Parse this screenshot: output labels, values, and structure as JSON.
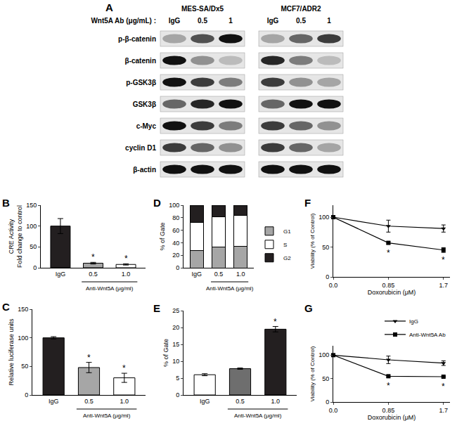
{
  "blot": {
    "panel": "A",
    "treatment_label": "Wnt5A Ab (μg/mL) :",
    "lanes": [
      "IgG",
      "0.5",
      "1"
    ],
    "rows": [
      "p-β-catenin",
      "β-catenin",
      "p-GSK3β",
      "GSK3β",
      "c-Myc",
      "cyclin D1",
      "β-actin"
    ],
    "cell_lines": [
      {
        "name": "MES-SA/Dx5",
        "intensities": [
          [
            0.3,
            0.7,
            1.0
          ],
          [
            1.0,
            0.4,
            0.2
          ],
          [
            1.0,
            0.8,
            0.5
          ],
          [
            0.6,
            0.9,
            1.0
          ],
          [
            1.0,
            0.8,
            0.5
          ],
          [
            0.8,
            0.6,
            0.4
          ],
          [
            1.0,
            1.0,
            1.0
          ]
        ]
      },
      {
        "name": "MCF7/ADR2",
        "intensities": [
          [
            0.3,
            0.6,
            0.8
          ],
          [
            0.9,
            0.5,
            0.2
          ],
          [
            0.8,
            0.4,
            0.3
          ],
          [
            0.6,
            1.0,
            1.0
          ],
          [
            0.8,
            0.6,
            0.4
          ],
          [
            0.8,
            0.6,
            0.3
          ],
          [
            1.0,
            1.0,
            1.0
          ]
        ]
      }
    ]
  },
  "chart_data": [
    {
      "panel": "B",
      "type": "bar",
      "ylabel": [
        "CRE Activity",
        "Fold change to control"
      ],
      "categories": [
        "IgG",
        "0.5",
        "1.0"
      ],
      "values": [
        100,
        11,
        8
      ],
      "errors": [
        18,
        2,
        1.5
      ],
      "colors": [
        "#231f20",
        "#a6a6a6",
        "#ffffff"
      ],
      "ylim": [
        0,
        150
      ],
      "yticks": [
        0,
        50,
        100,
        150
      ],
      "xlabel": {
        "text": "Anti-Wnt5A (μg/ml)",
        "categories": [
          "0.5",
          "1.0"
        ]
      },
      "annotations": [
        {
          "text": "*",
          "category": "0.5"
        },
        {
          "text": "*",
          "category": "1.0"
        }
      ]
    },
    {
      "panel": "C",
      "type": "bar",
      "ylabel": [
        "Relative luciferase units"
      ],
      "categories": [
        "IgG",
        "0.5",
        "1.0"
      ],
      "values": [
        100,
        48,
        30
      ],
      "errors": [
        2,
        9,
        8
      ],
      "colors": [
        "#231f20",
        "#a6a6a6",
        "#ffffff"
      ],
      "ylim": [
        0,
        150
      ],
      "yticks": [
        0,
        50,
        100,
        150
      ],
      "xlabel": {
        "text": "Anti-Wnt5A (μg/ml)",
        "categories": [
          "0.5",
          "1.0"
        ]
      },
      "annotations": [
        {
          "text": "*",
          "category": "0.5"
        },
        {
          "text": "*",
          "category": "1.0"
        }
      ]
    },
    {
      "panel": "D",
      "type": "bar",
      "stacked": true,
      "legend": "right",
      "ylabel": [
        "% of Gate"
      ],
      "categories": [
        "IgG",
        "0.5",
        "1.0"
      ],
      "series": [
        {
          "name": "G1",
          "color": "#a6a6a6",
          "values": [
            28,
            33,
            34
          ]
        },
        {
          "name": "S",
          "color": "#ffffff",
          "values": [
            45,
            48,
            50
          ]
        },
        {
          "name": "G2",
          "color": "#231f20",
          "values": [
            27,
            19,
            16
          ]
        }
      ],
      "ylim": [
        0,
        100
      ],
      "yticks": [
        0,
        20,
        40,
        60,
        80,
        100
      ],
      "xlabel": {
        "text": "Anti-Wnt5A (μg/ml)",
        "categories": [
          "0.5",
          "1.0"
        ]
      }
    },
    {
      "panel": "E",
      "type": "bar",
      "ylabel": [
        "% of Gate"
      ],
      "categories": [
        "IgG",
        "0.5",
        "1.0"
      ],
      "values": [
        6,
        7.8,
        19.5
      ],
      "errors": [
        0.3,
        0.2,
        0.8
      ],
      "colors": [
        "#ffffff",
        "#6e6e6e",
        "#231f20"
      ],
      "ylim": [
        0,
        25
      ],
      "yticks": [
        0,
        5,
        10,
        15,
        20,
        25
      ],
      "xlabel": {
        "text": "Anti-Wnt5A (μg/ml)",
        "categories": [
          "0.5",
          "1.0"
        ]
      },
      "annotations": [
        {
          "text": "*",
          "category": "1.0"
        }
      ]
    },
    {
      "panel": "F",
      "type": "line",
      "xlabel": "Doxorubicin (μM)",
      "ylabel": [
        "Viability (% of Control)"
      ],
      "x": [
        0,
        0.85,
        1.7
      ],
      "xlim": [
        0,
        1.8
      ],
      "xticks": [
        {
          "value": 0,
          "label": "0.0"
        },
        0.85,
        1.7
      ],
      "ylim": [
        0,
        120
      ],
      "yticks": [
        0,
        50,
        100
      ],
      "series": [
        {
          "color": "#000000",
          "marker": "triangle-down",
          "values": [
            100,
            85,
            81
          ],
          "errors": [
            0,
            10,
            6
          ]
        },
        {
          "color": "#000000",
          "marker": "square",
          "values": [
            100,
            57,
            45
          ],
          "errors": [
            0,
            2,
            4
          ]
        }
      ],
      "annotations": [
        {
          "text": "*",
          "x": 0.85,
          "on_series": 1
        },
        {
          "text": "*",
          "x": 1.7,
          "on_series": 1
        }
      ]
    },
    {
      "panel": "G",
      "type": "line",
      "legend": "top right",
      "xlabel": "Doxorubicin (μM)",
      "ylabel": [
        "Viability (% of Control)"
      ],
      "x": [
        0,
        0.85,
        1.7
      ],
      "xlim": [
        0,
        1.8
      ],
      "xticks": [
        {
          "value": 0,
          "label": "0.0"
        },
        0.85,
        1.7
      ],
      "ylim": [
        0,
        120
      ],
      "yticks": [
        0,
        50,
        100
      ],
      "series": [
        {
          "name": "IgG",
          "color": "#000000",
          "marker": "triangle-down",
          "values": [
            100,
            90,
            83
          ],
          "errors": [
            0,
            8,
            5
          ]
        },
        {
          "name": "Anti-Wnt5A Ab",
          "color": "#000000",
          "marker": "square",
          "values": [
            100,
            55,
            54
          ],
          "errors": [
            0,
            2,
            1
          ]
        }
      ],
      "annotations": [
        {
          "text": "*",
          "x": 0.85,
          "on_series": 1
        },
        {
          "text": "*",
          "x": 1.7,
          "on_series": 1
        }
      ]
    }
  ]
}
